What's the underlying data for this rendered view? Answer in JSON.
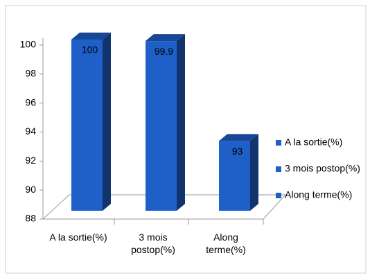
{
  "chart_data": {
    "type": "bar3d",
    "categories": [
      "A la sortie(%)",
      "3 mois postop(%)",
      "Along terme(%)"
    ],
    "values": [
      100,
      99.9,
      93
    ],
    "color": "#1f5fc8",
    "ylim": [
      88,
      100
    ],
    "yticks": [
      88,
      90,
      92,
      94,
      96,
      98,
      100
    ],
    "legend": "right"
  }
}
